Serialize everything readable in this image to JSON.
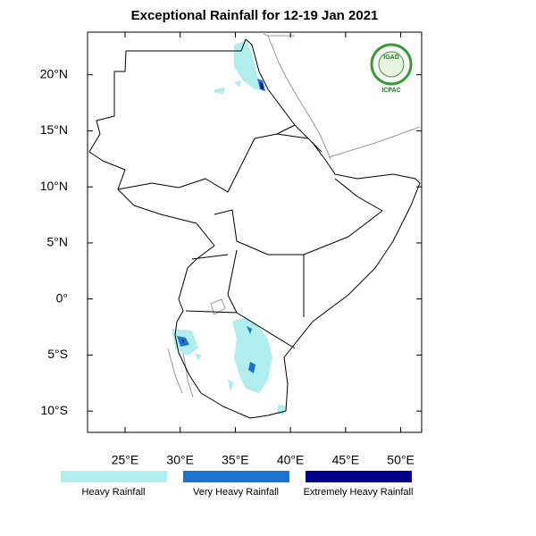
{
  "map": {
    "title": "Exceptional Rainfall for 12-19 Jan 2021",
    "lon_ticks": [
      {
        "value": 25,
        "label": "25°E"
      },
      {
        "value": 30,
        "label": "30°E"
      },
      {
        "value": 35,
        "label": "35°E"
      },
      {
        "value": 40,
        "label": "40°E"
      },
      {
        "value": 45,
        "label": "45°E"
      },
      {
        "value": 50,
        "label": "50°E"
      }
    ],
    "lat_ticks": [
      {
        "value": 20,
        "label": "20°N"
      },
      {
        "value": 15,
        "label": "15°N"
      },
      {
        "value": 10,
        "label": "10°N"
      },
      {
        "value": 5,
        "label": "5°N"
      },
      {
        "value": 0,
        "label": "0°"
      },
      {
        "value": -5,
        "label": "5°S"
      },
      {
        "value": -10,
        "label": "10°S"
      }
    ],
    "lon_range": [
      21.6,
      51.9
    ],
    "lat_range": [
      -11.9,
      23.8
    ],
    "logo": {
      "name": "IGAD",
      "caption": "ICPAC"
    },
    "legend": [
      {
        "label": "Heavy Rainfall",
        "color": "#b0eeee"
      },
      {
        "label": "Very Heavy Rainfall",
        "color": "#1874cd"
      },
      {
        "label": "Extremely Heavy Rainfall",
        "color": "#00008b"
      }
    ]
  }
}
